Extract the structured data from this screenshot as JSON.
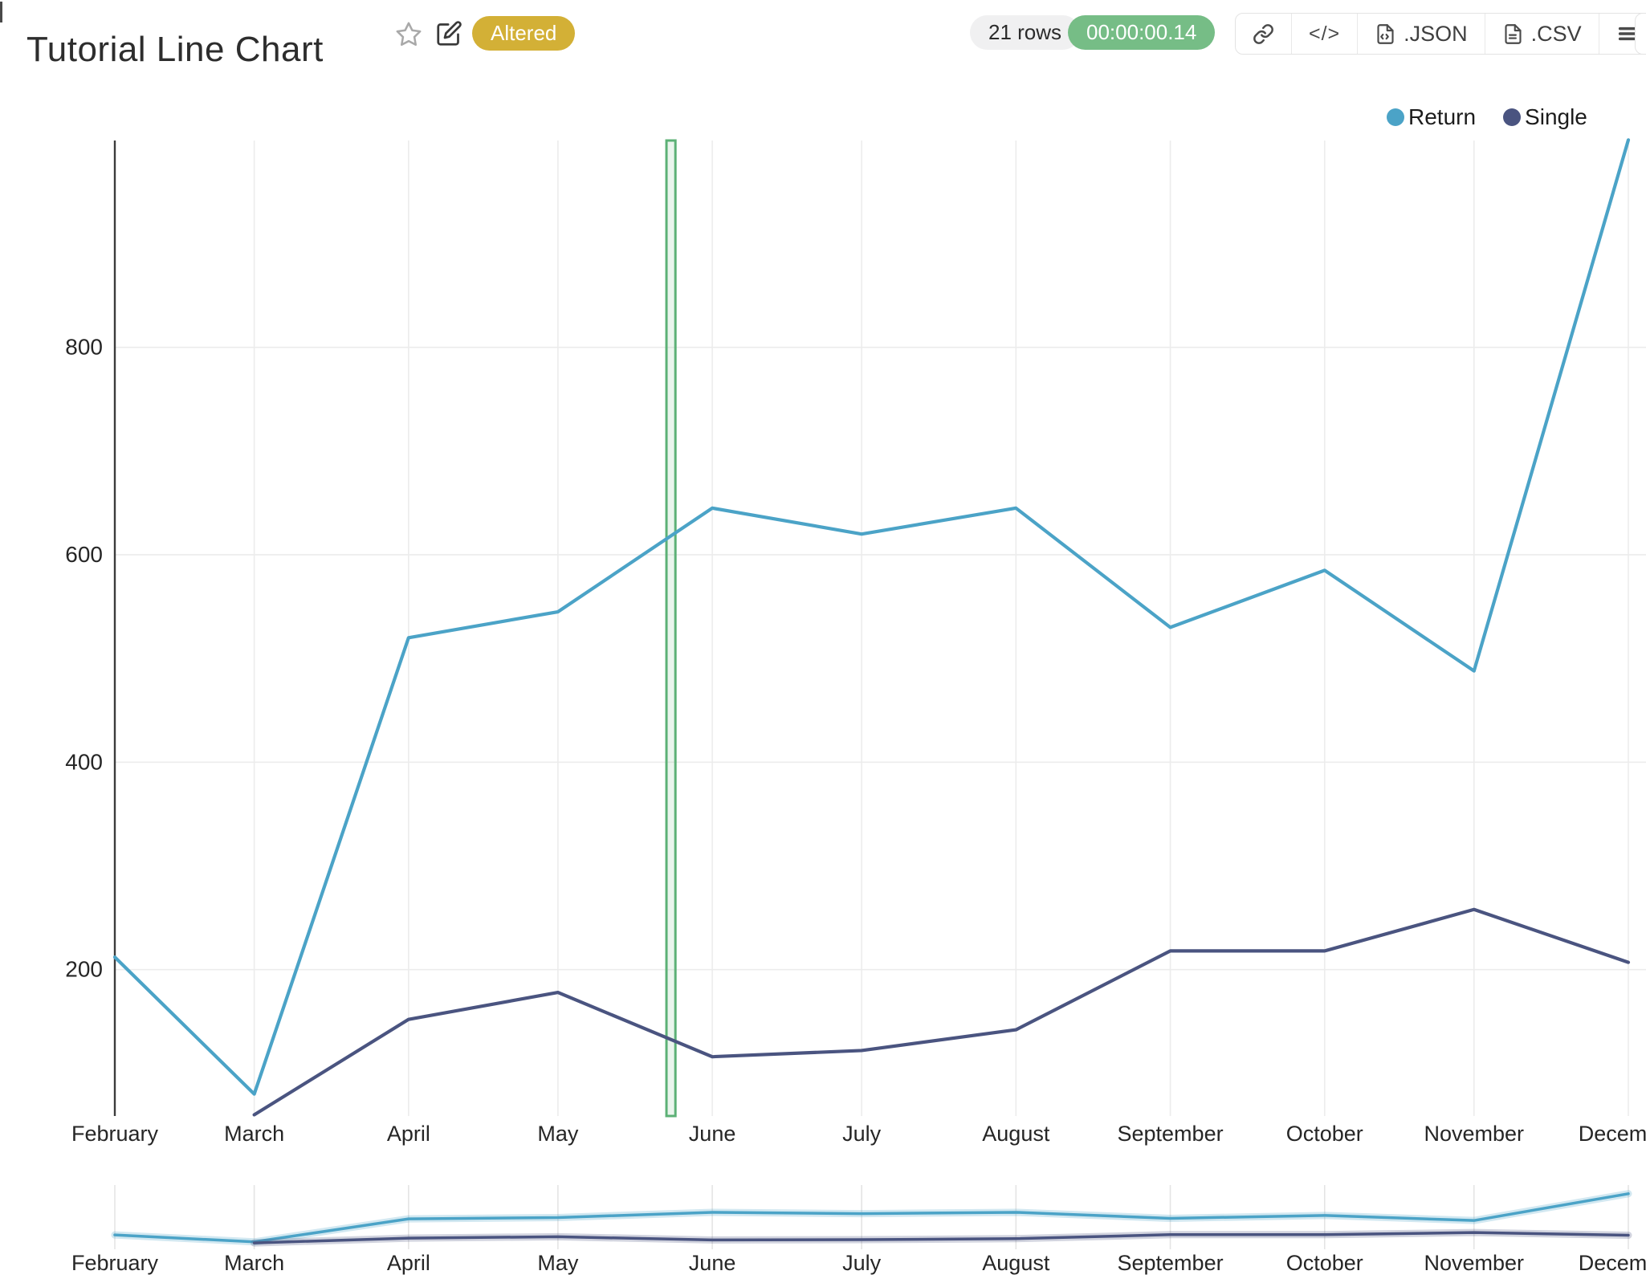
{
  "header": {
    "title": "Tutorial Line Chart",
    "status_badge": "Altered",
    "rows_count": "21 rows",
    "execution_time": "00:00:00.14",
    "code_glyph": "</>",
    "export_json_label": ".JSON",
    "export_csv_label": ".CSV"
  },
  "legend": {
    "items": [
      {
        "label": "Return",
        "color": "#4BA3C7"
      },
      {
        "label": "Single",
        "color": "#4A5480"
      }
    ]
  },
  "chart_data": {
    "type": "line",
    "title": "Tutorial Line Chart",
    "x_type": "time",
    "x_labels": [
      "February",
      "March",
      "April",
      "May",
      "June",
      "July",
      "August",
      "September",
      "October",
      "November",
      "December"
    ],
    "x_day_offsets": [
      0,
      28,
      59,
      89,
      120,
      150,
      181,
      212,
      243,
      273,
      304
    ],
    "series": [
      {
        "name": "Return",
        "color": "#4BA3C7",
        "values": [
          212,
          80,
          520,
          545,
          645,
          620,
          645,
          530,
          585,
          488,
          1000
        ]
      },
      {
        "name": "Single",
        "color": "#4A5480",
        "values": [
          null,
          60,
          152,
          178,
          116,
          122,
          142,
          218,
          218,
          258,
          207
        ]
      }
    ],
    "y_ticks": [
      200,
      400,
      600,
      800
    ],
    "y_axis_range": [
      59,
      1000
    ],
    "grid": true,
    "legend_position": "top-right",
    "highlight_band_days": [
      110.8,
      112.6
    ],
    "highlight_band_color": "#5CB176",
    "has_range_slider": true
  }
}
